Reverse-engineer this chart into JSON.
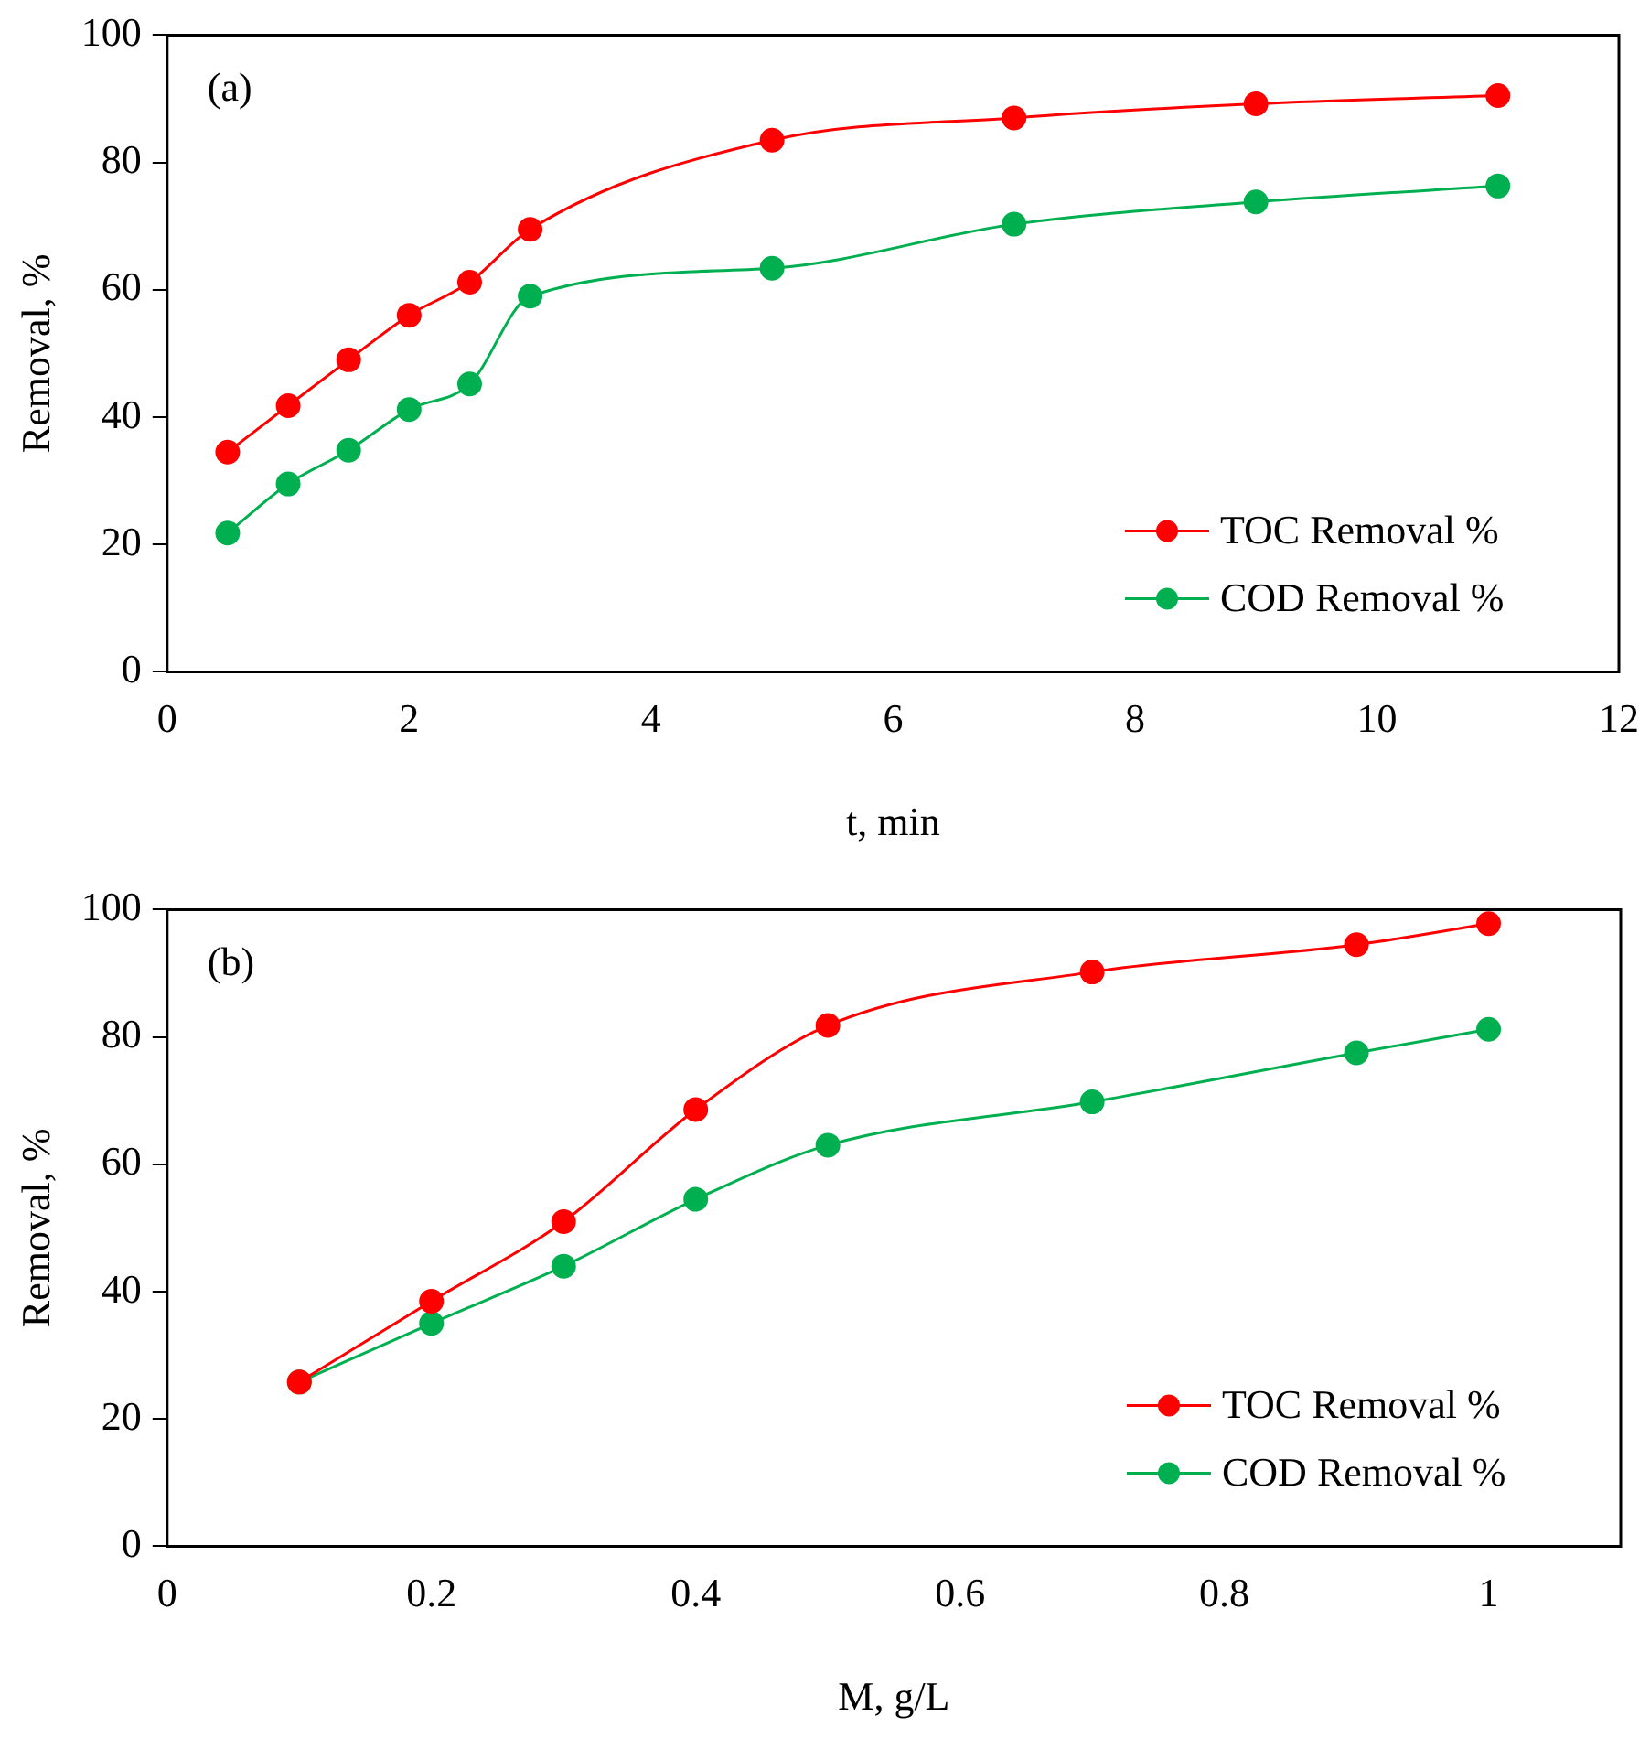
{
  "chart_data": [
    {
      "type": "line",
      "xlabel": "t, min",
      "ylabel": "Removal, %",
      "annotations": [
        "(a)"
      ],
      "x": [
        0.5,
        1,
        1.5,
        2,
        2.5,
        3,
        5,
        7,
        9,
        11
      ],
      "series": [
        {
          "name": "TOC Removal %",
          "color": "#ff0000",
          "values": [
            34.5,
            41.8,
            49,
            56,
            61.2,
            69.5,
            83.5,
            87,
            89.2,
            90.5
          ]
        },
        {
          "name": "COD Removal %",
          "color": "#00b050",
          "values": [
            21.8,
            29.5,
            34.8,
            41.2,
            45.2,
            59,
            63.4,
            70.3,
            73.8,
            76.3
          ]
        }
      ],
      "xlim": [
        0,
        12
      ],
      "xticks": [
        0,
        2,
        4,
        6,
        8,
        10,
        12
      ],
      "ylim": [
        0,
        100
      ],
      "yticks": [
        0,
        20,
        40,
        60,
        80,
        100
      ],
      "grid": false,
      "legend": "bottom right",
      "marker": "circle",
      "line_style": "solid"
    },
    {
      "type": "line",
      "xlabel": "M, g/L",
      "ylabel": "Removal, %",
      "annotations": [
        "(b)"
      ],
      "x": [
        0.1,
        0.2,
        0.3,
        0.4,
        0.5,
        0.7,
        0.9,
        1
      ],
      "series": [
        {
          "name": "TOC Removal %",
          "color": "#ff0000",
          "values": [
            25.8,
            38.5,
            51,
            68.6,
            81.8,
            90.2,
            94.5,
            97.8
          ]
        },
        {
          "name": "COD Removal %",
          "color": "#00b050",
          "values": [
            25.8,
            35,
            44,
            54.5,
            63,
            69.8,
            77.5,
            81.2
          ]
        }
      ],
      "xlim": [
        0,
        1.1
      ],
      "xticks": [
        0,
        0.2,
        0.4,
        0.6,
        0.8,
        1
      ],
      "ylim": [
        0,
        100
      ],
      "yticks": [
        0,
        20,
        40,
        60,
        80,
        100
      ],
      "grid": false,
      "legend": "bottom right",
      "marker": "circle",
      "line_style": "solid"
    }
  ]
}
